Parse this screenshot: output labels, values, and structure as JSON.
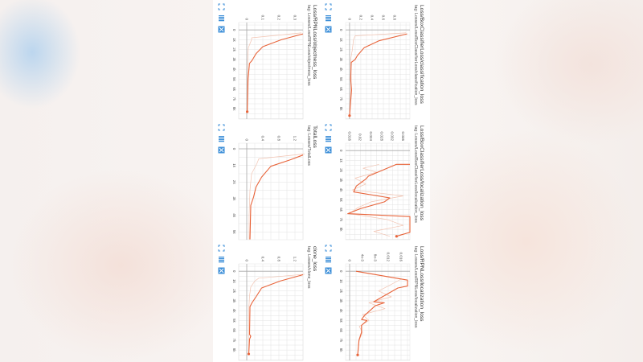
{
  "colors": {
    "smoothed": "#e8643a",
    "raw": "#f2c4b2",
    "grid": "#e3e3e3",
    "zero": "#aaaaaa",
    "icon": "#3d8fd8"
  },
  "icons": [
    "fullscreen-icon",
    "data-table-icon",
    "fit-domain-icon"
  ],
  "chart_data": [
    {
      "type": "line",
      "title": "Loss/BoxClassifierLoss/classification_loss",
      "tag": "tag: Losses/Loss/BoxClassifierLoss/classification_loss",
      "xlim": [
        -750,
        9050
      ],
      "ylim": [
        -0.07,
        1.07
      ],
      "xticks": [
        0,
        1000,
        2000,
        3000,
        4000,
        5000,
        6000,
        7000,
        8000
      ],
      "xtick_labels": [
        "0",
        "1k",
        "2k",
        "3k",
        "4k",
        "5k",
        "6k",
        "7k",
        "8k"
      ],
      "yticks": [
        0,
        0.2,
        0.4,
        0.6,
        0.8
      ],
      "ytick_labels": [
        "0",
        "0.2",
        "0.4",
        "0.6",
        "0.8"
      ],
      "series": [
        {
          "role": "smoothed",
          "x": [
            400,
            1100,
            1800,
            2600,
            3000,
            3300,
            5000,
            6100,
            8700
          ],
          "y": [
            1.02,
            0.52,
            0.26,
            0.14,
            0.1,
            0.03,
            0.02,
            0.035,
            0.0
          ]
        },
        {
          "role": "raw",
          "x": [
            300,
            600,
            1000,
            2000,
            3000,
            5000,
            8700
          ],
          "y": [
            1.0,
            0.1,
            0.07,
            0.05,
            0.02,
            0.03,
            0.0
          ]
        }
      ]
    },
    {
      "type": "line",
      "title": "Loss/BoxClassifierLoss/localization_loss",
      "tag": "tag: Losses/Loss/BoxClassifierLoss/localization_loss",
      "xlim": [
        -750,
        9050
      ],
      "ylim": [
        0.0145,
        0.0385
      ],
      "xticks": [
        0,
        1000,
        2000,
        3000,
        4000,
        5000,
        6000,
        7000,
        8000
      ],
      "xtick_labels": [
        "0",
        "1k",
        "2k",
        "3k",
        "4k",
        "5k",
        "6k",
        "7k",
        "8k"
      ],
      "yticks": [
        0.016,
        0.02,
        0.024,
        0.028,
        0.032,
        0.036
      ],
      "ytick_labels": [
        "0.016",
        "0.02",
        "0.024",
        "0.028",
        "0.032",
        "0.036"
      ],
      "series": [
        {
          "role": "smoothed",
          "x": [
            1400,
            1400,
            2600,
            2900,
            3600,
            4200,
            4800,
            5200,
            5900,
            6400,
            6700,
            8300,
            8700
          ],
          "y": [
            0.0385,
            0.0335,
            0.023,
            0.022,
            0.0185,
            0.0175,
            0.031,
            0.029,
            0.02,
            0.0153,
            0.0385,
            0.0385,
            0.0335
          ]
        },
        {
          "role": "raw",
          "x": [
            1400,
            1800,
            2200,
            2800,
            3400,
            4000,
            4600,
            5200,
            5800,
            6400,
            7000,
            7600,
            8200,
            8700
          ],
          "y": [
            0.027,
            0.021,
            0.026,
            0.018,
            0.022,
            0.017,
            0.036,
            0.024,
            0.019,
            0.016,
            0.03,
            0.036,
            0.025,
            0.031
          ]
        }
      ]
    },
    {
      "type": "line",
      "title": "Loss/RPNLoss/localization_loss",
      "tag": "tag: Losses/Loss/RPNLoss/localization_loss",
      "xlim": [
        -750,
        9050
      ],
      "ylim": [
        -0.00125,
        0.01875
      ],
      "xticks": [
        0,
        1000,
        2000,
        3000,
        4000,
        5000,
        6000,
        7000,
        8000
      ],
      "xtick_labels": [
        "0",
        "1k",
        "2k",
        "3k",
        "4k",
        "5k",
        "6k",
        "7k",
        "8k"
      ],
      "yticks": [
        0,
        0.004,
        0.008,
        0.012,
        0.016
      ],
      "ytick_labels": [
        "0",
        "4e-3",
        "8e-3",
        "0.012",
        "0.016"
      ],
      "series": [
        {
          "role": "smoothed",
          "x": [
            0,
            900,
            1500,
            1700,
            3100,
            3200,
            3500,
            4500,
            4900,
            5000,
            5500,
            6200,
            7000,
            8500
          ],
          "y": [
            0.002,
            0.018,
            0.018,
            0.015,
            0.0075,
            0.0108,
            0.008,
            0.0046,
            0.0037,
            0.0054,
            0.0037,
            0.0037,
            0.0029,
            0.0025
          ]
        },
        {
          "role": "raw",
          "x": [
            0,
            800,
            1500,
            2000,
            2600,
            3200,
            3800,
            4400,
            5000,
            5600,
            6200,
            7000,
            8500
          ],
          "y": [
            0.002,
            0.016,
            0.012,
            0.009,
            0.013,
            0.006,
            0.011,
            0.004,
            0.006,
            0.003,
            0.004,
            0.003,
            0.0025
          ]
        }
      ]
    },
    {
      "type": "line",
      "title": "Loss/RPNLoss/objectness_loss",
      "tag": "tag: Losses/Loss/RPNLoss/objectness_loss",
      "xlim": [
        -750,
        9050
      ],
      "ylim": [
        -0.05,
        0.35
      ],
      "xticks": [
        0,
        1000,
        2000,
        3000,
        4000,
        5000,
        6000,
        7000,
        8000
      ],
      "xtick_labels": [
        "0",
        "1k",
        "2k",
        "3k",
        "4k",
        "5k",
        "6k",
        "7k",
        "8k"
      ],
      "yticks": [
        0,
        0.1,
        0.2,
        0.3
      ],
      "ytick_labels": [
        "0",
        "0.1",
        "0.2",
        "0.3"
      ],
      "series": [
        {
          "role": "smoothed",
          "x": [
            400,
            1000,
            1700,
            2400,
            3100,
            3400,
            5000,
            8300
          ],
          "y": [
            0.35,
            0.215,
            0.1,
            0.058,
            0.033,
            0.017,
            0.008,
            0.003
          ]
        },
        {
          "role": "raw",
          "x": [
            300,
            800,
            1000,
            1800,
            3000,
            5000,
            8300
          ],
          "y": [
            0.34,
            0.03,
            0.03,
            0.01,
            0.006,
            0.004,
            0.003
          ]
        }
      ]
    },
    {
      "type": "line",
      "title": "TotalLoss",
      "tag": "tag: Losses/TotalLoss",
      "xlim": [
        -340,
        5470
      ],
      "ylim": [
        -0.2,
        1.4
      ],
      "xticks": [
        0,
        1000,
        2000,
        3000,
        4000,
        5000
      ],
      "xtick_labels": [
        "0",
        "1k",
        "2k",
        "3k",
        "4k",
        "5k"
      ],
      "yticks": [
        0,
        0.4,
        0.8,
        1.2
      ],
      "ytick_labels": [
        "0",
        "0.4",
        "0.8",
        "1.2"
      ],
      "series": [
        {
          "role": "smoothed",
          "x": [
            370,
            650,
            1050,
            1700,
            2300,
            2900,
            3400,
            5450
          ],
          "y": [
            1.4,
            1.1,
            0.6,
            0.37,
            0.23,
            0.17,
            0.1,
            0.08
          ]
        },
        {
          "role": "raw",
          "x": [
            300,
            600,
            900,
            1500,
            2500,
            4000,
            5450
          ],
          "y": [
            1.45,
            0.3,
            0.25,
            0.12,
            0.08,
            0.06,
            0.06
          ]
        }
      ]
    },
    {
      "type": "line",
      "title": "clone_loss",
      "tag": "tag: Losses/clone_loss",
      "xlim": [
        -750,
        9050
      ],
      "ylim": [
        -0.2,
        1.4
      ],
      "xticks": [
        0,
        1000,
        2000,
        3000,
        4000,
        5000,
        6000,
        7000,
        8000
      ],
      "xtick_labels": [
        "0",
        "1k",
        "2k",
        "3k",
        "4k",
        "5k",
        "6k",
        "7k",
        "8k"
      ],
      "yticks": [
        0,
        0.4,
        0.8,
        1.2
      ],
      "ytick_labels": [
        "0",
        "0.4",
        "0.8",
        "1.2"
      ],
      "series": [
        {
          "role": "smoothed",
          "x": [
            350,
            1000,
            1700,
            2600,
            3200,
            3600,
            6400,
            6600,
            6900,
            8400
          ],
          "y": [
            1.4,
            0.83,
            0.37,
            0.23,
            0.13,
            0.08,
            0.07,
            0.1,
            0.07,
            0.05
          ]
        },
        {
          "role": "raw",
          "x": [
            300,
            700,
            1000,
            1600,
            2500,
            4000,
            8400
          ],
          "y": [
            1.45,
            0.3,
            0.2,
            0.1,
            0.07,
            0.05,
            0.05
          ]
        }
      ]
    }
  ]
}
